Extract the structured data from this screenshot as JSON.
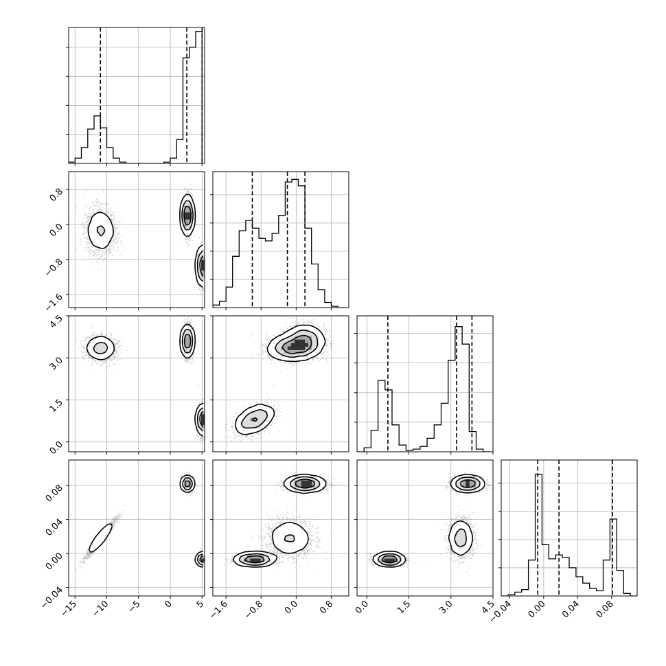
{
  "chart_data": {
    "type": "corner",
    "parameters": 4,
    "grid": true,
    "scatter_color": "#555555",
    "contour_color": "#000000",
    "quantile_style": "dashed",
    "variables": [
      {
        "range": [
          -16,
          5.4
        ],
        "ticks": [
          -15,
          -10,
          -5,
          0,
          5
        ],
        "tick_labels": [
          "−15",
          "−10",
          "−5",
          "0",
          "5"
        ],
        "quantiles": [
          -11,
          2.6,
          5.0
        ],
        "hist_edges": [
          -16,
          -15,
          -14,
          -13,
          -12,
          -11,
          -10,
          -9,
          -8,
          -7,
          -6,
          -5,
          -4,
          -3,
          -2,
          -1,
          0,
          1,
          2,
          3,
          4,
          5
        ],
        "hist_counts": [
          0.01,
          0.04,
          0.12,
          0.26,
          0.36,
          0.27,
          0.12,
          0.04,
          0.01,
          0,
          0,
          0,
          0,
          0,
          0,
          0.01,
          0.04,
          0.18,
          0.8,
          0.88,
          1.0
        ],
        "hist_ylim": [
          0,
          1.02
        ]
      },
      {
        "range": [
          -1.9,
          1.2
        ],
        "ticks": [
          -1.6,
          -0.8,
          0.0,
          0.8
        ],
        "tick_labels": [
          "−1.6",
          "−0.8",
          "0.0",
          "0.8"
        ],
        "quantiles": [
          -1.0,
          -0.2,
          0.2
        ],
        "hist_edges": [
          -1.9,
          -1.75,
          -1.6,
          -1.45,
          -1.3,
          -1.15,
          -1.0,
          -0.85,
          -0.7,
          -0.55,
          -0.4,
          -0.25,
          -0.1,
          0.05,
          0.2,
          0.35,
          0.5,
          0.65,
          0.8,
          0.95,
          1.1
        ],
        "hist_counts": [
          0.02,
          0.05,
          0.16,
          0.4,
          0.6,
          0.68,
          0.62,
          0.54,
          0.52,
          0.58,
          0.72,
          0.98,
          1.0,
          0.95,
          0.62,
          0.34,
          0.14,
          0.04,
          0.01,
          0
        ],
        "hist_ylim": [
          0,
          1.05
        ]
      },
      {
        "range": [
          -0.35,
          4.5
        ],
        "ticks": [
          0.0,
          1.5,
          3.0,
          4.5
        ],
        "tick_labels": [
          "0.0",
          "1.5",
          "3.0",
          "4.5"
        ],
        "quantiles": [
          0.75,
          3.2,
          3.75
        ],
        "hist_edges": [
          -0.35,
          -0.1,
          0.15,
          0.4,
          0.65,
          0.9,
          1.15,
          1.4,
          1.65,
          1.9,
          2.15,
          2.4,
          2.65,
          2.9,
          3.15,
          3.4,
          3.65,
          3.9,
          4.15,
          4.4
        ],
        "hist_counts": [
          0.0,
          0.03,
          0.16,
          0.53,
          0.46,
          0.2,
          0.05,
          0.01,
          0.02,
          0.04,
          0.1,
          0.2,
          0.36,
          0.68,
          0.93,
          0.8,
          0.15,
          0.02,
          0.0
        ],
        "hist_ylim": [
          0,
          1.0
        ]
      },
      {
        "range": [
          -0.05,
          0.11
        ],
        "ticks": [
          -0.04,
          0.0,
          0.04,
          0.08
        ],
        "tick_labels": [
          "−0.04",
          "0.00",
          "0.04",
          "0.08"
        ],
        "quantiles": [
          -0.007,
          0.018,
          0.081
        ],
        "hist_edges": [
          -0.05,
          -0.042,
          -0.034,
          -0.026,
          -0.018,
          -0.01,
          -0.002,
          0.006,
          0.014,
          0.022,
          0.03,
          0.038,
          0.046,
          0.054,
          0.062,
          0.07,
          0.078,
          0.086,
          0.094,
          0.102,
          0.11
        ],
        "hist_counts": [
          0.0,
          0.01,
          0.03,
          0.05,
          0.28,
          0.95,
          0.4,
          0.29,
          0.32,
          0.3,
          0.22,
          0.15,
          0.1,
          0.06,
          0.04,
          0.28,
          0.6,
          0.2,
          0.02,
          0.0
        ],
        "hist_ylim": [
          0,
          1.05
        ]
      }
    ],
    "clusters": [
      {
        "mean": [
          -11.0,
          -0.15,
          3.35,
          0.018
        ],
        "sd": [
          1.15,
          0.26,
          0.22,
          0.011
        ],
        "rho": {
          "0-3": 0.97
        },
        "weight": 0.34
      },
      {
        "mean": [
          2.7,
          0.2,
          3.6,
          0.082
        ],
        "sd": [
          0.35,
          0.22,
          0.28,
          0.004
        ],
        "weight": 0.36
      },
      {
        "mean": [
          5.05,
          -0.95,
          0.8,
          -0.007
        ],
        "sd": [
          0.35,
          0.22,
          0.26,
          0.003
        ],
        "rho": {
          "1-2": 0.45
        },
        "weight": 0.3
      }
    ]
  }
}
